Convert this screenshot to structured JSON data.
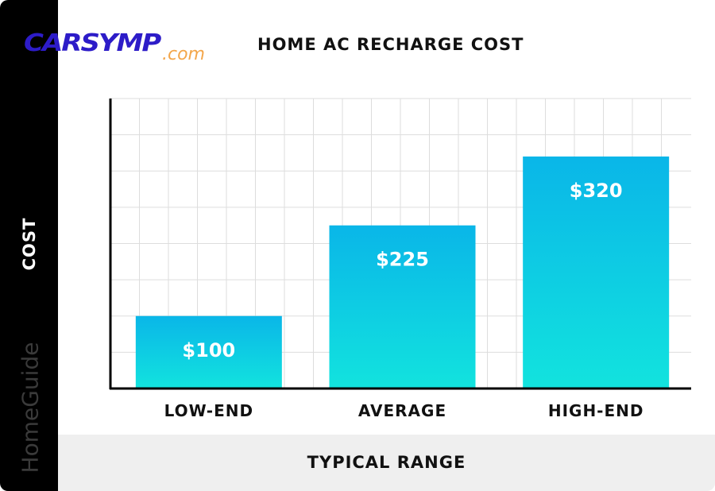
{
  "brand": {
    "logo_main": "CARSYMP",
    "logo_sub": ".com",
    "watermark": "HomeGuide"
  },
  "colors": {
    "bar_top": "#0ab6e8",
    "bar_bottom": "#12e3de",
    "grid": "#dddddd",
    "axis": "#000000"
  },
  "chart_data": {
    "type": "bar",
    "title": "HOME AC RECHARGE COST",
    "xlabel": "TYPICAL RANGE",
    "ylabel": "COST",
    "categories": [
      "LOW-END",
      "AVERAGE",
      "HIGH-END"
    ],
    "values": [
      100,
      225,
      320
    ],
    "data_labels": [
      "$100",
      "$225",
      "$320"
    ],
    "ylim": [
      0,
      400
    ],
    "grid": true
  }
}
